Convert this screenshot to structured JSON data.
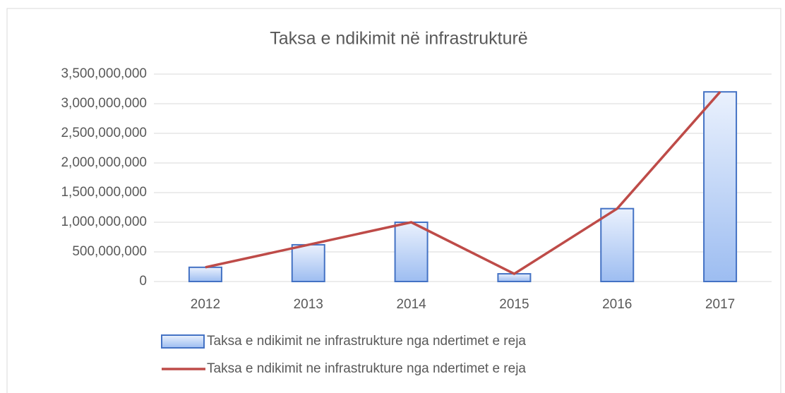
{
  "chart_data": {
    "type": "combo",
    "title": "Taksa e ndikimit në infrastrukturë",
    "categories": [
      "2012",
      "2013",
      "2014",
      "2015",
      "2016",
      "2017"
    ],
    "series": [
      {
        "name": "Taksa e ndikimit ne infrastrukture nga ndertimet e reja",
        "type": "bar",
        "color": "#4472c4",
        "values": [
          240000000,
          620000000,
          1000000000,
          130000000,
          1230000000,
          3200000000
        ]
      },
      {
        "name": "Taksa e ndikimit ne infrastrukture nga ndertimet e reja",
        "type": "line",
        "color": "#be4b48",
        "values": [
          240000000,
          620000000,
          1000000000,
          130000000,
          1230000000,
          3200000000
        ]
      }
    ],
    "ylim": [
      0,
      3500000000
    ],
    "yticks": [
      0,
      {
        "value": 500000000,
        "label": "500,000,000"
      },
      {
        "value": 1000000000,
        "label": "1,000,000,000"
      },
      {
        "value": 1500000000,
        "label": "1,500,000,000"
      },
      {
        "value": 2000000000,
        "label": "2,000,000,000"
      },
      {
        "value": 2500000000,
        "label": "2,500,000,000"
      },
      {
        "value": 3000000000,
        "label": "3,000,000,000"
      },
      {
        "value": 3500000000,
        "label": "3,500,000,000"
      }
    ],
    "grid": true,
    "legend": "bottom"
  }
}
